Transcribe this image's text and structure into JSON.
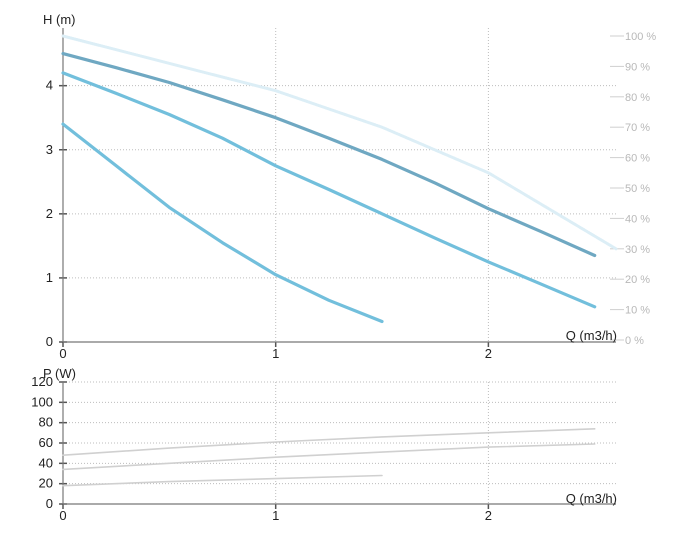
{
  "chart_data": [
    {
      "type": "line",
      "xlabel": "Q (m3/h)",
      "ylabel": "H (m)",
      "xlim": [
        0,
        2.6
      ],
      "ylim": [
        0,
        4.9
      ],
      "x_ticks": [
        "0",
        "1",
        "2"
      ],
      "x_tick_values": [
        0,
        1,
        2
      ],
      "y_ticks": [
        "0",
        "1",
        "2",
        "3",
        "4"
      ],
      "y_tick_values": [
        0,
        1,
        2,
        3,
        4
      ],
      "secondary_ylabels": [
        "0 %",
        "10 %",
        "20 %",
        "30 %",
        "40 %",
        "50 %",
        "60 %",
        "70 %",
        "80 %",
        "90 %",
        "100 %"
      ],
      "secondary_ylim": [
        0,
        100
      ],
      "grid": "dotted",
      "series": [
        {
          "color": "#6fa8c2",
          "x": [
            0,
            0.25,
            0.5,
            0.75,
            1.0,
            1.25,
            1.5,
            1.75,
            2.0,
            2.25,
            2.5
          ],
          "y": [
            4.5,
            4.28,
            4.05,
            3.78,
            3.5,
            3.18,
            2.85,
            2.48,
            2.08,
            1.72,
            1.35
          ]
        },
        {
          "color": "#72bfdc",
          "x": [
            0,
            0.25,
            0.5,
            0.75,
            1.0,
            1.25,
            1.5,
            1.75,
            2.0,
            2.25,
            2.5
          ],
          "y": [
            4.2,
            3.88,
            3.55,
            3.18,
            2.75,
            2.38,
            2.0,
            1.62,
            1.25,
            0.9,
            0.55
          ]
        },
        {
          "color": "#72bfdc",
          "x": [
            0,
            0.25,
            0.5,
            0.75,
            1.0,
            1.25,
            1.5
          ],
          "y": [
            3.4,
            2.75,
            2.1,
            1.55,
            1.05,
            0.65,
            0.32
          ]
        },
        {
          "color": "#dceef6",
          "axis": "secondary",
          "x": [
            0,
            0.5,
            1.0,
            1.5,
            2.0,
            2.6
          ],
          "y": [
            100,
            91,
            82,
            70,
            55,
            30
          ]
        }
      ]
    },
    {
      "type": "line",
      "xlabel": "Q (m3/h)",
      "ylabel": "P (W)",
      "xlim": [
        0,
        2.6
      ],
      "ylim": [
        0,
        120
      ],
      "x_ticks": [
        "0",
        "1",
        "2"
      ],
      "x_tick_values": [
        0,
        1,
        2
      ],
      "y_ticks": [
        "0",
        "20",
        "40",
        "60",
        "80",
        "100",
        "120"
      ],
      "y_tick_values": [
        0,
        20,
        40,
        60,
        80,
        100,
        120
      ],
      "grid": "dotted",
      "series": [
        {
          "color": "#d0d0d0",
          "x": [
            0,
            0.5,
            1.0,
            1.5,
            2.0,
            2.5
          ],
          "y": [
            48,
            55,
            61,
            66,
            70,
            74
          ]
        },
        {
          "color": "#d0d0d0",
          "x": [
            0,
            0.5,
            1.0,
            1.5,
            2.0,
            2.5
          ],
          "y": [
            34,
            40,
            46,
            51,
            56,
            59
          ]
        },
        {
          "color": "#d0d0d0",
          "x": [
            0,
            0.5,
            1.0,
            1.5
          ],
          "y": [
            18,
            22,
            25,
            28
          ]
        }
      ]
    }
  ]
}
